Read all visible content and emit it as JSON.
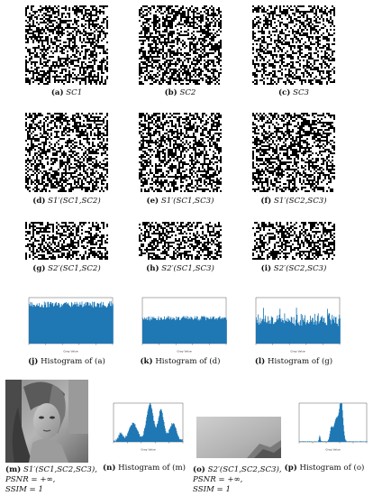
{
  "captions": {
    "a": {
      "tag": "(a)",
      "text": "SC1"
    },
    "b": {
      "tag": "(b)",
      "text": "SC2"
    },
    "c": {
      "tag": "(c)",
      "text": "SC3"
    },
    "d": {
      "tag": "(d)",
      "text": "S1′(SC1,SC2)"
    },
    "e": {
      "tag": "(e)",
      "text": "S1′(SC1,SC3)"
    },
    "f": {
      "tag": "(f)",
      "text": "S1′(SC2,SC3)"
    },
    "g": {
      "tag": "(g)",
      "text": "S2′(SC1,SC2)"
    },
    "h": {
      "tag": "(h)",
      "text": "S2′(SC1,SC3)"
    },
    "i": {
      "tag": "(i)",
      "text": "S2′(SC2,SC3)"
    },
    "j": {
      "tag": "(j)",
      "text": "Histogram of (a)"
    },
    "k": {
      "tag": "(k)",
      "text": "Histogram of (d)"
    },
    "l": {
      "tag": "(l)",
      "text": "Histogram of (g)"
    },
    "m": {
      "tag": "(m)",
      "text": "S1′(SC1,SC2,SC3),",
      "line2": "PSNR = +∞,",
      "line3": "SSIM = 1"
    },
    "n": {
      "tag": "(n)",
      "text": "Histogram of (m)"
    },
    "o": {
      "tag": "(o)",
      "text": "S2′(SC1,SC2,SC3),",
      "line2": "PSNR = +∞,",
      "line3": "SSIM = 1"
    },
    "p": {
      "tag": "(p)",
      "text": "Histogram of (o)"
    }
  },
  "colors": {
    "bar": "#1f77b4",
    "noise_dark": "#000000",
    "noise_light": "#ffffff"
  },
  "axis_text": {
    "xlabel": "Gray Value"
  }
}
